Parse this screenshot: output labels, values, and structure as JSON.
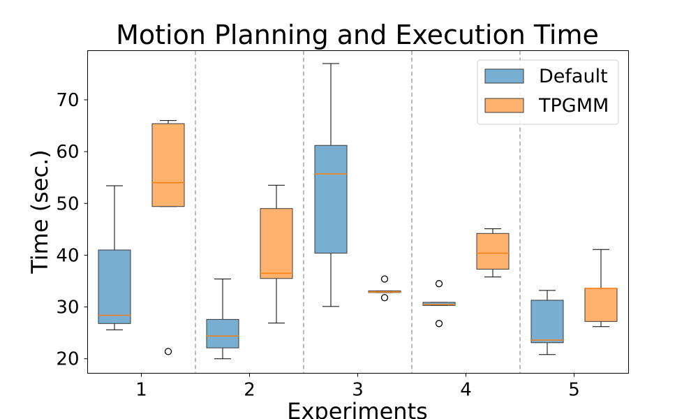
{
  "chart_data": {
    "type": "boxplot",
    "title": "Motion Planning and Execution Time",
    "xlabel": "Experiments",
    "ylabel": "Time (sec.)",
    "categories": [
      "1",
      "2",
      "3",
      "4",
      "5"
    ],
    "ylim": [
      17.2,
      79.5
    ],
    "yticks": [
      20,
      30,
      40,
      50,
      60,
      70
    ],
    "grid": false,
    "separators": true,
    "legend_position": "top-right",
    "series": [
      {
        "name": "Default",
        "color": "#77aed2",
        "edge_color": "#3a3a3a",
        "median_color": "#ff7f0e",
        "boxes": [
          {
            "category": "1",
            "whisker_low": 25.6,
            "q1": 26.8,
            "median": 28.4,
            "q3": 41.0,
            "whisker_high": 53.4,
            "outliers": []
          },
          {
            "category": "2",
            "whisker_low": 20.0,
            "q1": 22.1,
            "median": 24.4,
            "q3": 27.6,
            "whisker_high": 35.4,
            "outliers": []
          },
          {
            "category": "3",
            "whisker_low": 30.1,
            "q1": 40.4,
            "median": 55.7,
            "q3": 61.2,
            "whisker_high": 77.0,
            "outliers": []
          },
          {
            "category": "4",
            "whisker_low": 30.3,
            "q1": 30.3,
            "median": 30.5,
            "q3": 30.9,
            "whisker_high": 30.9,
            "outliers": [
              34.5,
              26.8
            ]
          },
          {
            "category": "5",
            "whisker_low": 20.8,
            "q1": 23.1,
            "median": 23.6,
            "q3": 31.3,
            "whisker_high": 33.2,
            "outliers": []
          }
        ]
      },
      {
        "name": "TPGMM",
        "color": "#ffb26e",
        "edge_color": "#3a3a3a",
        "median_color": "#ff7f0e",
        "boxes": [
          {
            "category": "1",
            "whisker_low": 49.4,
            "q1": 49.4,
            "median": 54.0,
            "q3": 65.4,
            "whisker_high": 66.0,
            "outliers": [
              21.4
            ]
          },
          {
            "category": "2",
            "whisker_low": 26.9,
            "q1": 35.5,
            "median": 36.5,
            "q3": 49.0,
            "whisker_high": 53.5,
            "outliers": []
          },
          {
            "category": "3",
            "whisker_low": 32.8,
            "q1": 32.8,
            "median": 32.9,
            "q3": 33.1,
            "whisker_high": 33.1,
            "outliers": [
              35.4,
              31.8
            ]
          },
          {
            "category": "4",
            "whisker_low": 35.8,
            "q1": 37.3,
            "median": 40.4,
            "q3": 44.2,
            "whisker_high": 45.1,
            "outliers": []
          },
          {
            "category": "5",
            "whisker_low": 26.2,
            "q1": 27.2,
            "median": 33.6,
            "q3": 33.6,
            "whisker_high": 41.1,
            "outliers": []
          }
        ]
      }
    ]
  }
}
